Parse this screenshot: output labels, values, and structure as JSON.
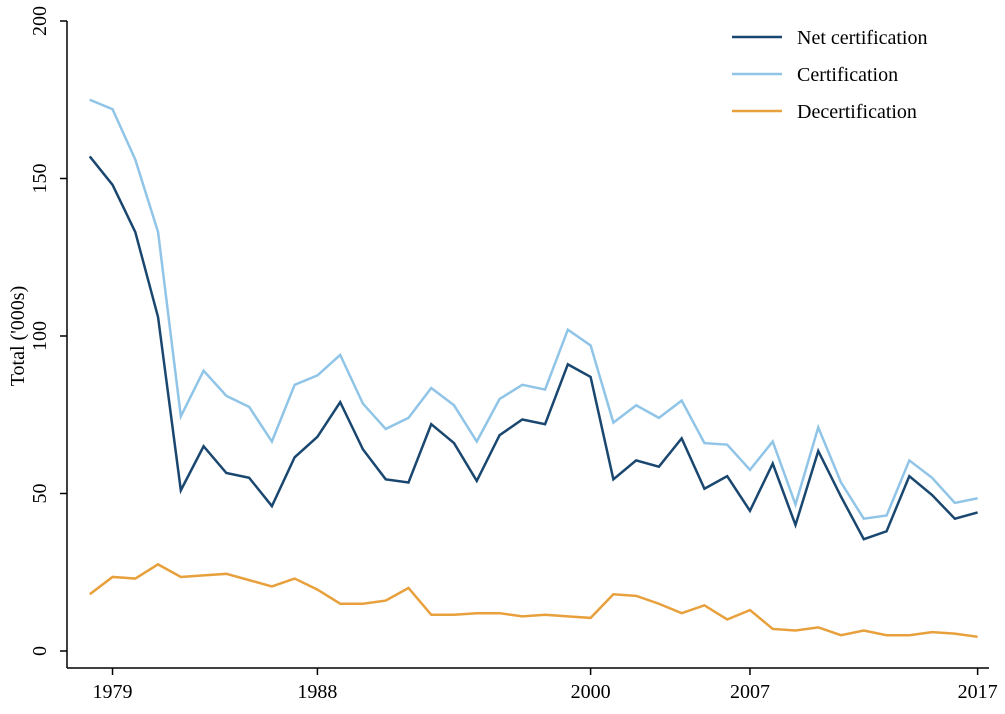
{
  "chart_data": {
    "type": "line",
    "y_label": "Total ('000s)",
    "x": [
      1978,
      1979,
      1980,
      1981,
      1982,
      1983,
      1984,
      1985,
      1986,
      1987,
      1988,
      1989,
      1990,
      1991,
      1992,
      1993,
      1994,
      1995,
      1996,
      1997,
      1998,
      1999,
      2000,
      2001,
      2002,
      2003,
      2004,
      2005,
      2006,
      2007,
      2008,
      2009,
      2010,
      2011,
      2012,
      2013,
      2014,
      2015,
      2016,
      2017
    ],
    "series": [
      {
        "name": "Net certification",
        "color": "#1a476f",
        "values": [
          157,
          148,
          133,
          106,
          51,
          65,
          56.5,
          55,
          46,
          61.5,
          68,
          79,
          64,
          54.5,
          53.5,
          72,
          66,
          54,
          68.5,
          73.5,
          72,
          91,
          87,
          54.5,
          60.5,
          58.5,
          67.5,
          51.5,
          55.5,
          44.5,
          59.5,
          40,
          63.5,
          49,
          35.5,
          38,
          55.5,
          49.5,
          42,
          44
        ]
      },
      {
        "name": "Certification",
        "color": "#90c5e8",
        "values": [
          175,
          172,
          156,
          133,
          74.5,
          89,
          81,
          77.5,
          66.5,
          84.5,
          87.5,
          94,
          78.5,
          70.5,
          74,
          83.5,
          78,
          66.5,
          80,
          84.5,
          83,
          102,
          97,
          72.5,
          78,
          74,
          79.5,
          66,
          65.5,
          57.5,
          66.5,
          46.5,
          71,
          53.5,
          42,
          43,
          60.5,
          55,
          47,
          48.5
        ]
      },
      {
        "name": "Decertification",
        "color": "#e8a03c",
        "values": [
          18,
          23.5,
          23,
          27.5,
          23.5,
          24,
          24.5,
          22.5,
          20.5,
          23,
          19.5,
          15,
          15,
          16,
          20,
          11.5,
          11.5,
          12,
          12,
          11,
          11.5,
          11,
          10.5,
          18,
          17.5,
          15,
          12,
          14.5,
          10,
          13,
          7,
          6.5,
          7.5,
          5,
          6.5,
          5,
          5,
          6,
          5.5,
          4.5
        ]
      }
    ],
    "xlim": [
      1977,
      2017.5
    ],
    "xticks": [
      1979,
      1988,
      2000,
      2007,
      2017
    ],
    "ylim": [
      -5.4,
      200
    ],
    "yticks": [
      0,
      50,
      100,
      150,
      200
    ],
    "legend": "top-right"
  }
}
